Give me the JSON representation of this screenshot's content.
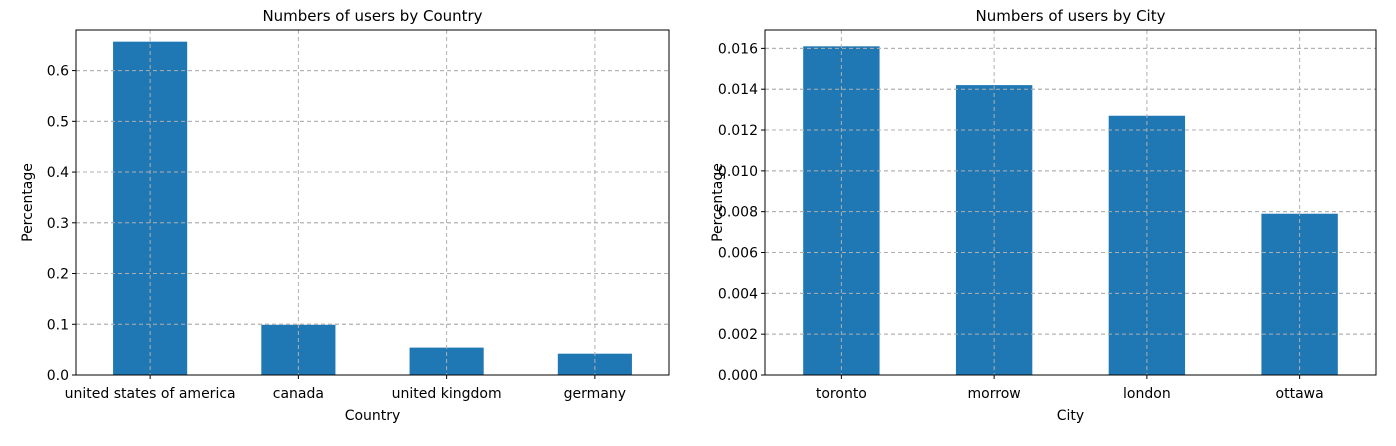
{
  "chart_data": [
    {
      "type": "bar",
      "title": "Numbers of users by Country",
      "xlabel": "Country",
      "ylabel": "Percentage",
      "categories": [
        "united states of america",
        "canada",
        "united kingdom",
        "germany"
      ],
      "values": [
        0.657,
        0.099,
        0.054,
        0.042
      ],
      "ylim": [
        0,
        0.68
      ],
      "yticks": [
        0.0,
        0.1,
        0.2,
        0.3,
        0.4,
        0.5,
        0.6
      ],
      "ytick_labels": [
        "0.0",
        "0.1",
        "0.2",
        "0.3",
        "0.4",
        "0.5",
        "0.6"
      ],
      "grid": true,
      "color": "#1f77b4"
    },
    {
      "type": "bar",
      "title": "Numbers of users by City",
      "xlabel": "City",
      "ylabel": "Percentage",
      "categories": [
        "toronto",
        "morrow",
        "london",
        "ottawa"
      ],
      "values": [
        0.0161,
        0.0142,
        0.0127,
        0.0079
      ],
      "ylim": [
        0,
        0.0169
      ],
      "yticks": [
        0.0,
        0.002,
        0.004,
        0.006,
        0.008,
        0.01,
        0.012,
        0.014,
        0.016
      ],
      "ytick_labels": [
        "0.000",
        "0.002",
        "0.004",
        "0.006",
        "0.008",
        "0.010",
        "0.012",
        "0.014",
        "0.016"
      ],
      "grid": true,
      "color": "#1f77b4"
    }
  ]
}
